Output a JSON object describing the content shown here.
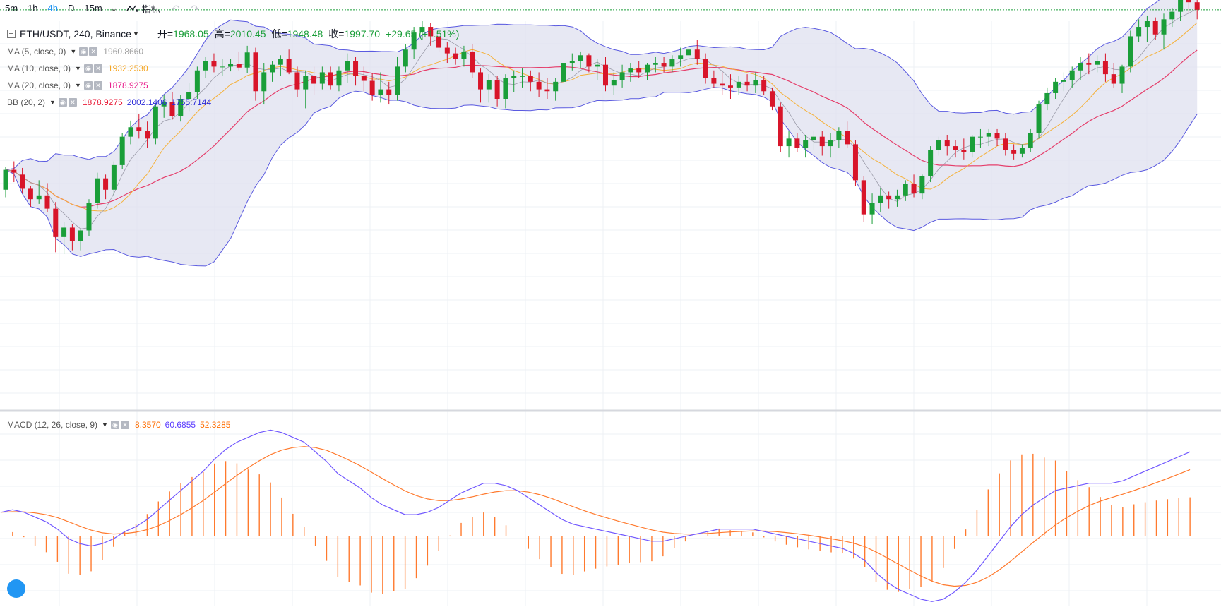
{
  "toolbar": {
    "intervals": [
      "5m",
      "1h",
      "4h",
      "D",
      "15m"
    ],
    "active": "4h",
    "indicator_label": "指标"
  },
  "legend": {
    "symbol": "ETH/USDT, 240, Binance",
    "open_label": "开=",
    "open": "1968.05",
    "high_label": "高=",
    "high": "2010.45",
    "low_label": "低=",
    "low": "1948.48",
    "close_label": "收=",
    "close": "1997.70",
    "change": "+29.65 (+1.51%)",
    "indicators": [
      {
        "name": "MA (5, close, 0)",
        "values": [
          "1960.8660"
        ],
        "colors": [
          "#a0a0a0"
        ]
      },
      {
        "name": "MA (10, close, 0)",
        "values": [
          "1932.2530"
        ],
        "colors": [
          "#f5a623"
        ]
      },
      {
        "name": "MA (20, close, 0)",
        "values": [
          "1878.9275"
        ],
        "colors": [
          "#e91e8c"
        ]
      },
      {
        "name": "BB (20, 2)",
        "values": [
          "1878.9275",
          "2002.1406",
          "1755.7144"
        ],
        "colors": [
          "#e91e3a",
          "#2b2bd8",
          "#2b2bd8"
        ]
      }
    ],
    "macd": {
      "name": "MACD (12, 26, close, 9)",
      "values": [
        "8.3570",
        "60.6855",
        "52.3285"
      ],
      "colors": [
        "#ff6d00",
        "#5c3dff",
        "#ff6d00"
      ]
    }
  },
  "colors": {
    "up": "#1a9e39",
    "down": "#d8152a",
    "bb_fill": "#dfe0ef",
    "bb_line": "#5a5ae0",
    "ma5": "#9a9aa8",
    "ma10": "#f5b13a",
    "ma20": "#e53d6a",
    "macd": "#7057ff",
    "signal": "#ff7a2e",
    "hist": "#ff7a2e",
    "grid": "#eef0f4"
  },
  "chart_data": {
    "type": "candlestick",
    "symbol": "ETH/USDT",
    "ylim": [
      1640,
      2050
    ],
    "macd_ylim": [
      -55,
      90
    ],
    "candles": [
      [
        1872,
        1896,
        1864,
        1893
      ],
      [
        1893,
        1902,
        1880,
        1890
      ],
      [
        1888,
        1895,
        1868,
        1873
      ],
      [
        1873,
        1876,
        1854,
        1862
      ],
      [
        1862,
        1882,
        1857,
        1866
      ],
      [
        1866,
        1879,
        1848,
        1852
      ],
      [
        1852,
        1859,
        1806,
        1822
      ],
      [
        1822,
        1838,
        1804,
        1832
      ],
      [
        1832,
        1836,
        1808,
        1818
      ],
      [
        1818,
        1830,
        1808,
        1829
      ],
      [
        1829,
        1862,
        1823,
        1858
      ],
      [
        1858,
        1890,
        1852,
        1884
      ],
      [
        1884,
        1888,
        1862,
        1872
      ],
      [
        1872,
        1902,
        1866,
        1898
      ],
      [
        1898,
        1932,
        1894,
        1928
      ],
      [
        1928,
        1945,
        1920,
        1938
      ],
      [
        1938,
        1952,
        1926,
        1934
      ],
      [
        1934,
        1944,
        1916,
        1926
      ],
      [
        1926,
        1962,
        1920,
        1960
      ],
      [
        1960,
        1972,
        1948,
        1965
      ],
      [
        1965,
        1975,
        1946,
        1950
      ],
      [
        1950,
        1972,
        1944,
        1968
      ],
      [
        1968,
        1985,
        1955,
        1975
      ],
      [
        1975,
        2002,
        1968,
        1998
      ],
      [
        1998,
        2012,
        1990,
        2008
      ],
      [
        2008,
        2016,
        1996,
        2002
      ],
      [
        2002,
        2010,
        1992,
        2002
      ],
      [
        2002,
        2010,
        1997,
        2005
      ],
      [
        2005,
        2018,
        1998,
        2001
      ],
      [
        2001,
        2024,
        1995,
        2017
      ],
      [
        2017,
        2022,
        1966,
        1976
      ],
      [
        1976,
        2006,
        1962,
        1996
      ],
      [
        1996,
        2008,
        1986,
        2004
      ],
      [
        2004,
        2014,
        1992,
        2010
      ],
      [
        2010,
        2020,
        1994,
        1996
      ],
      [
        1996,
        2002,
        1970,
        1978
      ],
      [
        1978,
        1998,
        1958,
        1992
      ],
      [
        1992,
        2002,
        1972,
        1984
      ],
      [
        1984,
        2002,
        1978,
        1996
      ],
      [
        1996,
        2002,
        1978,
        1982
      ],
      [
        1982,
        2002,
        1976,
        1998
      ],
      [
        1998,
        2016,
        1985,
        2008
      ],
      [
        2008,
        2012,
        1982,
        1992
      ],
      [
        1992,
        2002,
        1976,
        1987
      ],
      [
        1987,
        1995,
        1966,
        1972
      ],
      [
        1972,
        1996,
        1964,
        1978
      ],
      [
        1978,
        1986,
        1962,
        1972
      ],
      [
        1972,
        2012,
        1966,
        2002
      ],
      [
        2002,
        2026,
        1996,
        2020
      ],
      [
        2020,
        2044,
        2010,
        2038
      ],
      [
        2038,
        2050,
        2030,
        2044
      ],
      [
        2044,
        2048,
        2024,
        2034
      ],
      [
        2034,
        2042,
        2018,
        2022
      ],
      [
        2022,
        2028,
        2006,
        2016
      ],
      [
        2016,
        2022,
        2004,
        2010
      ],
      [
        2010,
        2024,
        2002,
        2018
      ],
      [
        2018,
        2026,
        1990,
        1996
      ],
      [
        1996,
        2000,
        1964,
        1978
      ],
      [
        1978,
        1994,
        1964,
        1988
      ],
      [
        1988,
        1992,
        1960,
        1968
      ],
      [
        1968,
        1994,
        1958,
        1990
      ],
      [
        1990,
        1998,
        1975,
        1992
      ],
      [
        1992,
        2000,
        1980,
        1992
      ],
      [
        1992,
        1998,
        1976,
        1986
      ],
      [
        1986,
        1996,
        1970,
        1978
      ],
      [
        1978,
        1990,
        1968,
        1976
      ],
      [
        1976,
        1990,
        1966,
        1986
      ],
      [
        1986,
        2012,
        1980,
        2006
      ],
      [
        2006,
        2016,
        1998,
        2008
      ],
      [
        2008,
        2018,
        2000,
        2014
      ],
      [
        2014,
        2016,
        1996,
        2002
      ],
      [
        2002,
        2010,
        1988,
        2004
      ],
      [
        2004,
        2012,
        1976,
        1982
      ],
      [
        1982,
        1996,
        1972,
        1988
      ],
      [
        1988,
        2004,
        1980,
        1996
      ],
      [
        1996,
        2006,
        1986,
        2000
      ],
      [
        2000,
        2008,
        1990,
        1996
      ],
      [
        1996,
        2006,
        1988,
        2004
      ],
      [
        2004,
        2012,
        1996,
        2006
      ],
      [
        2006,
        2012,
        1996,
        2002
      ],
      [
        2002,
        2014,
        1996,
        2010
      ],
      [
        2010,
        2022,
        2002,
        2014
      ],
      [
        2014,
        2028,
        2006,
        2020
      ],
      [
        2020,
        2030,
        2004,
        2010
      ],
      [
        2010,
        2016,
        1984,
        1990
      ],
      [
        1990,
        1998,
        1980,
        1984
      ],
      [
        1984,
        1996,
        1972,
        1982
      ],
      [
        1982,
        1994,
        1968,
        1980
      ],
      [
        1980,
        1992,
        1972,
        1986
      ],
      [
        1986,
        1994,
        1976,
        1982
      ],
      [
        1982,
        1996,
        1974,
        1988
      ],
      [
        1988,
        1992,
        1972,
        1976
      ],
      [
        1976,
        1980,
        1956,
        1960
      ],
      [
        1960,
        1964,
        1912,
        1918
      ],
      [
        1918,
        1934,
        1906,
        1926
      ],
      [
        1926,
        1932,
        1912,
        1916
      ],
      [
        1916,
        1930,
        1906,
        1924
      ],
      [
        1924,
        1934,
        1914,
        1928
      ],
      [
        1928,
        1934,
        1908,
        1918
      ],
      [
        1918,
        1932,
        1906,
        1924
      ],
      [
        1924,
        1938,
        1916,
        1934
      ],
      [
        1934,
        1944,
        1916,
        1920
      ],
      [
        1920,
        1924,
        1876,
        1882
      ],
      [
        1882,
        1886,
        1838,
        1846
      ],
      [
        1846,
        1868,
        1836,
        1858
      ],
      [
        1858,
        1874,
        1848,
        1866
      ],
      [
        1866,
        1870,
        1852,
        1862
      ],
      [
        1862,
        1872,
        1854,
        1866
      ],
      [
        1866,
        1882,
        1860,
        1878
      ],
      [
        1878,
        1888,
        1864,
        1868
      ],
      [
        1868,
        1888,
        1862,
        1886
      ],
      [
        1886,
        1918,
        1880,
        1914
      ],
      [
        1914,
        1928,
        1908,
        1924
      ],
      [
        1924,
        1930,
        1908,
        1918
      ],
      [
        1918,
        1924,
        1906,
        1914
      ],
      [
        1914,
        1926,
        1904,
        1912
      ],
      [
        1912,
        1930,
        1906,
        1928
      ],
      [
        1928,
        1936,
        1916,
        1928
      ],
      [
        1928,
        1936,
        1918,
        1932
      ],
      [
        1932,
        1936,
        1918,
        1926
      ],
      [
        1926,
        1932,
        1908,
        1914
      ],
      [
        1914,
        1920,
        1904,
        1910
      ],
      [
        1910,
        1920,
        1906,
        1916
      ],
      [
        1916,
        1936,
        1912,
        1932
      ],
      [
        1932,
        1966,
        1926,
        1962
      ],
      [
        1962,
        1980,
        1956,
        1974
      ],
      [
        1974,
        1990,
        1968,
        1986
      ],
      [
        1986,
        1996,
        1976,
        1988
      ],
      [
        1988,
        2002,
        1980,
        1998
      ],
      [
        1998,
        2012,
        1988,
        2006
      ],
      [
        2006,
        2016,
        1994,
        2004
      ],
      [
        2004,
        2014,
        1996,
        2008
      ],
      [
        2008,
        2016,
        1986,
        1994
      ],
      [
        1994,
        2006,
        1980,
        1984
      ],
      [
        1984,
        2004,
        1974,
        2002
      ],
      [
        2002,
        2040,
        1996,
        2034
      ],
      [
        2034,
        2052,
        2028,
        2044
      ],
      [
        2044,
        2056,
        2028,
        2050
      ],
      [
        2050,
        2054,
        2030,
        2036
      ],
      [
        2036,
        2058,
        2020,
        2052
      ],
      [
        2052,
        2064,
        2044,
        2060
      ],
      [
        2060,
        2080,
        2050,
        2074
      ],
      [
        2074,
        2080,
        2058,
        2070
      ],
      [
        2070,
        2082,
        2052,
        2062
      ]
    ],
    "macd_line": [
      20,
      22,
      20,
      16,
      12,
      6,
      -2,
      -6,
      -8,
      -6,
      -2,
      4,
      8,
      14,
      22,
      30,
      38,
      46,
      54,
      64,
      72,
      78,
      82,
      86,
      88,
      86,
      82,
      78,
      70,
      62,
      52,
      46,
      40,
      32,
      26,
      22,
      18,
      18,
      20,
      24,
      30,
      36,
      40,
      44,
      44,
      42,
      38,
      32,
      26,
      20,
      14,
      10,
      8,
      6,
      4,
      2,
      0,
      -2,
      -4,
      -4,
      -2,
      0,
      2,
      4,
      6,
      6,
      6,
      6,
      4,
      2,
      0,
      -2,
      -4,
      -6,
      -8,
      -10,
      -14,
      -20,
      -30,
      -38,
      -44,
      -48,
      -52,
      -54,
      -52,
      -46,
      -38,
      -28,
      -16,
      -4,
      8,
      18,
      26,
      32,
      38,
      40,
      42,
      44,
      44,
      44,
      46,
      50,
      54,
      58,
      62,
      66,
      70
    ]
  }
}
